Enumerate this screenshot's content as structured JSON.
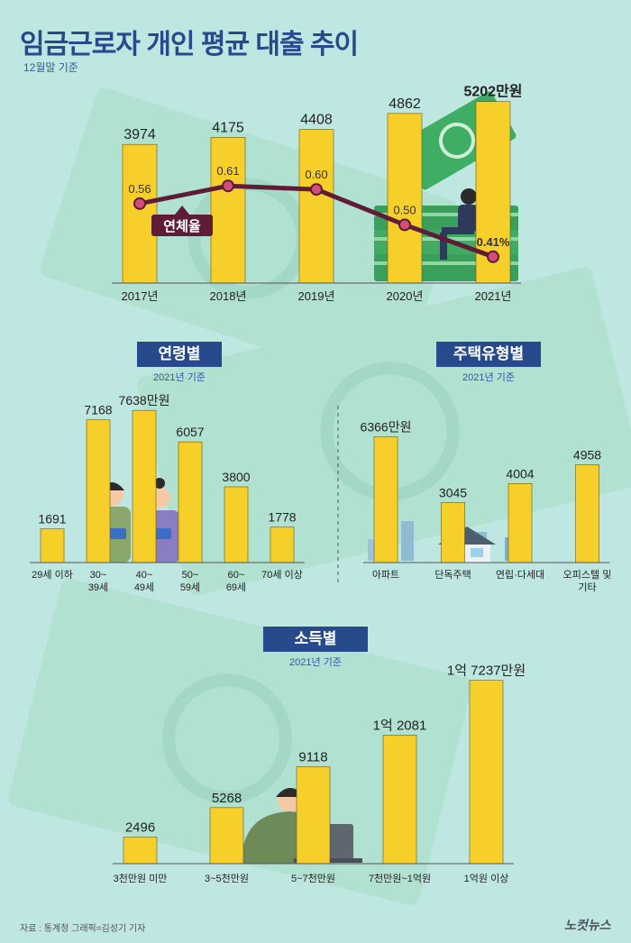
{
  "header": {
    "title": "임금근로자 개인 평균 대출 추이",
    "subtitle": "12월말 기준"
  },
  "colors": {
    "bar": "#f7cf2a",
    "bar_stroke": "#6b5b10",
    "line": "#5e1c36",
    "dot": "#d24f7a",
    "navy": "#274a8c"
  },
  "chart_data": [
    {
      "type": "bar",
      "id": "trend",
      "categories": [
        "2017년",
        "2018년",
        "2019년",
        "2020년",
        "2021년"
      ],
      "values": [
        3974,
        4175,
        4408,
        4862,
        5202
      ],
      "value_labels": [
        "3974",
        "4175",
        "4408",
        "4862",
        "5202만원"
      ],
      "title": "임금근로자 개인 평균 대출 추이",
      "unit": "만원",
      "overlay_line": {
        "name": "연체율",
        "values": [
          0.56,
          0.61,
          0.6,
          0.5,
          0.41
        ],
        "labels": [
          "0.56",
          "0.61",
          "0.60",
          "0.50",
          "0.41%"
        ]
      }
    },
    {
      "type": "bar",
      "id": "age",
      "title": "연령별",
      "subtitle": "2021년 기준",
      "categories": [
        [
          "29세 이하"
        ],
        [
          "30~",
          "39세"
        ],
        [
          "40~",
          "49세"
        ],
        [
          "50~",
          "59세"
        ],
        [
          "60~",
          "69세"
        ],
        [
          "70세 이상"
        ]
      ],
      "values": [
        1691,
        7168,
        7638,
        6057,
        3800,
        1778
      ],
      "value_labels": [
        "1691",
        "7168",
        "7638만원",
        "6057",
        "3800",
        "1778"
      ]
    },
    {
      "type": "bar",
      "id": "housing",
      "title": "주택유형별",
      "subtitle": "2021년 기준",
      "categories": [
        [
          "아파트"
        ],
        [
          "단독주택"
        ],
        [
          "연립·다세대"
        ],
        [
          "오피스텔 및",
          "기타"
        ]
      ],
      "values": [
        6366,
        3045,
        4004,
        4958
      ],
      "value_labels": [
        "6366만원",
        "3045",
        "4004",
        "4958"
      ]
    },
    {
      "type": "bar",
      "id": "income",
      "title": "소득별",
      "subtitle": "2021년 기준",
      "categories": [
        [
          "3천만원 미만"
        ],
        [
          "3~5천만원"
        ],
        [
          "5~7천만원"
        ],
        [
          "7천만원~1억원"
        ],
        [
          "1억원 이상"
        ]
      ],
      "values": [
        2496,
        5268,
        9118,
        12081,
        17237
      ],
      "value_labels": [
        "2496",
        "5268",
        "9118",
        "1억 2081",
        "1억 7237만원"
      ]
    }
  ],
  "footer": {
    "source": "자료 : 통계청   그래픽=김성기 기자",
    "brand": "노컷뉴스"
  }
}
